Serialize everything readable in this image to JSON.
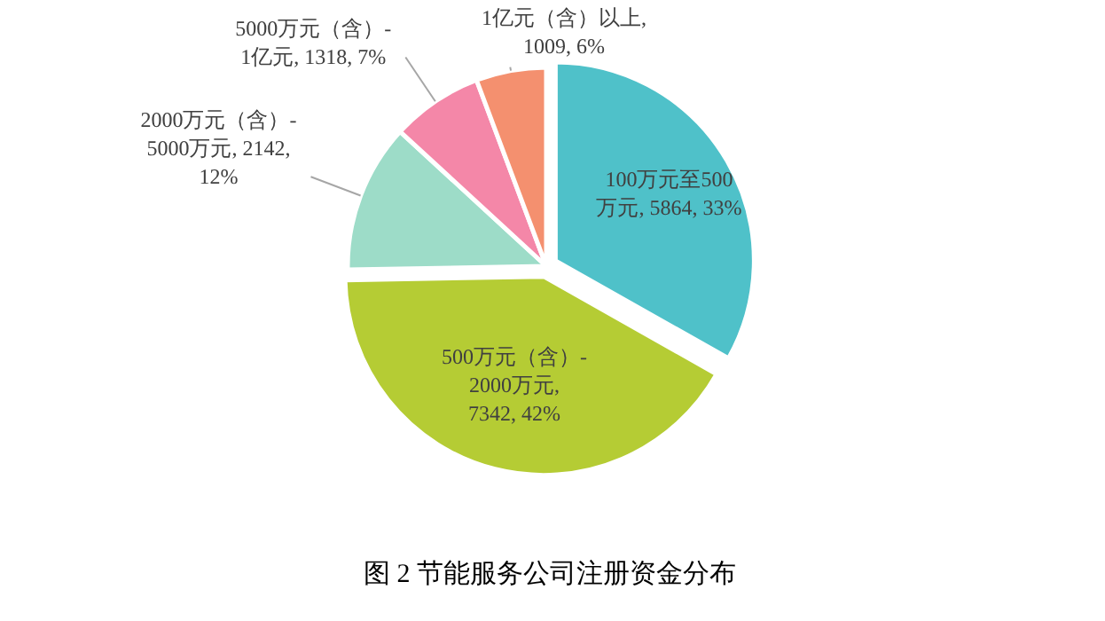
{
  "chart_data": {
    "type": "pie",
    "title": "图 2 节能服务公司注册资金分布",
    "categories": [
      "100万元至500万元",
      "500万元（含）-2000万元",
      "2000万元（含）-5000万元",
      "5000万元（含）-1亿元",
      "1亿元（含）以上"
    ],
    "values": [
      5864,
      7342,
      2142,
      1318,
      1009
    ],
    "colors": [
      "#4fc1c9",
      "#b5cc34",
      "#9ddcc8",
      "#f487a8",
      "#f4906f"
    ],
    "value_labels": [
      ", 5864, 33%",
      ", 7342, 42%",
      ", 2142, 12%",
      ", 1318, 7%",
      ", 1009, 6%"
    ]
  }
}
